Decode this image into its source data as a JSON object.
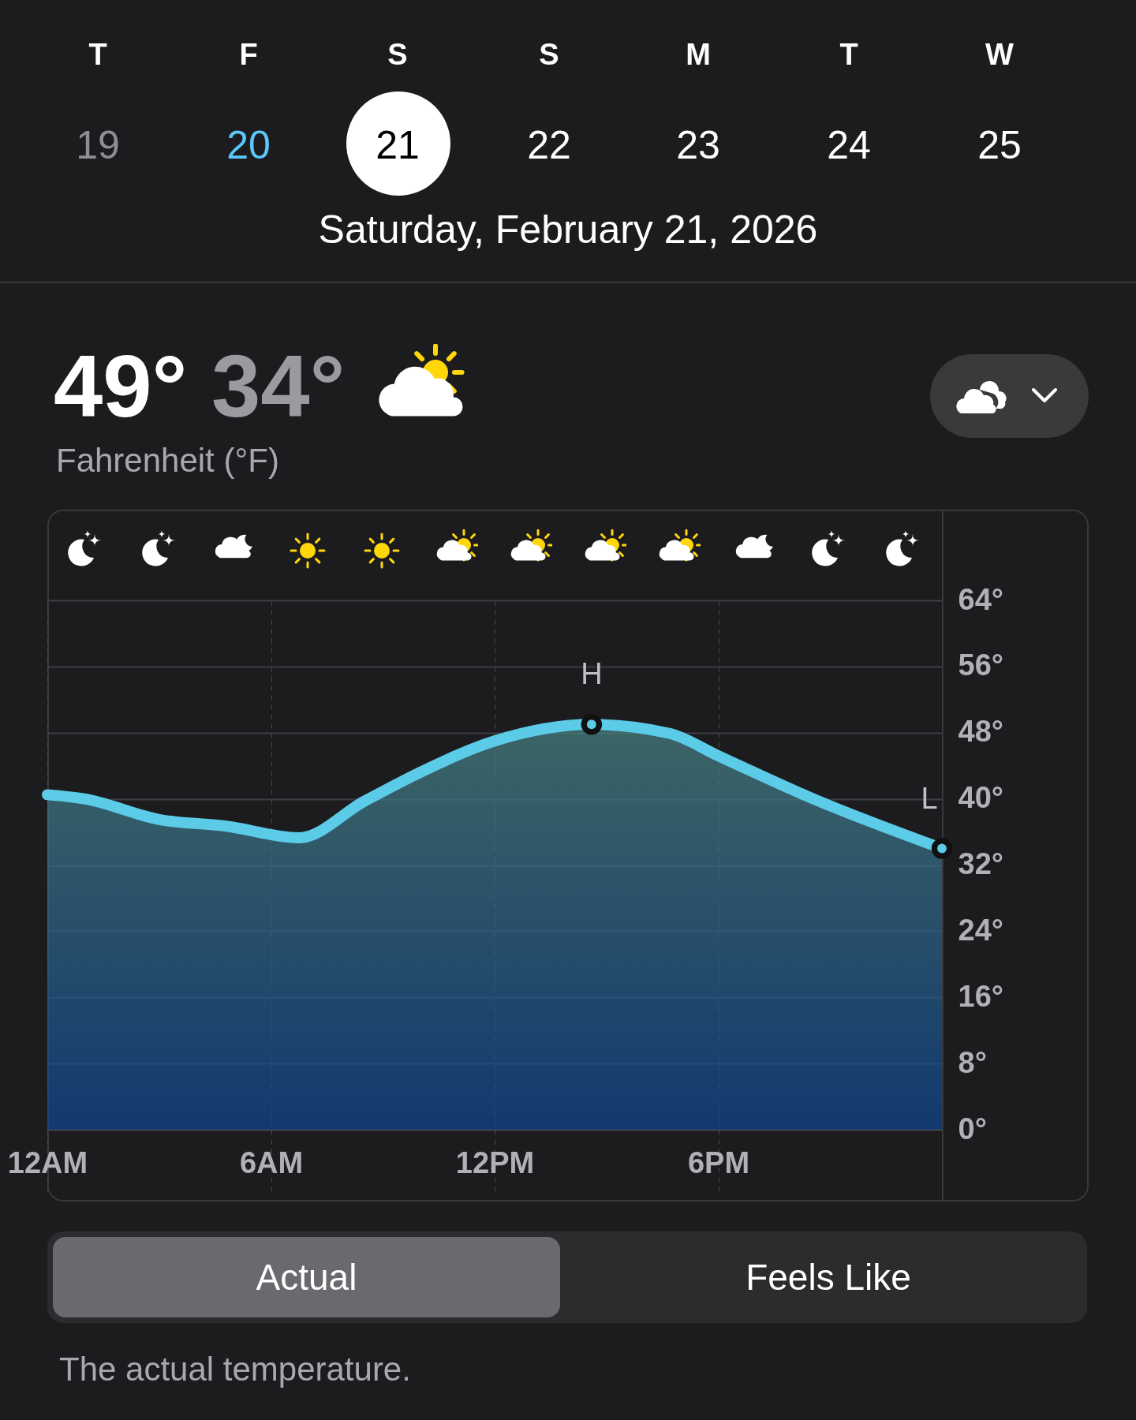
{
  "chart_data": {
    "type": "area",
    "title": "Saturday, February 21, 2026",
    "x": [
      "2026-02-21T00:00",
      "2026-02-21T01:00",
      "2026-02-21T03:00",
      "2026-02-21T04:48",
      "2026-02-21T06:45",
      "2026-02-21T08:30",
      "2026-02-21T10:00",
      "2026-02-21T12:00",
      "2026-02-21T14:36",
      "2026-02-21T16:42",
      "2026-02-21T18:00",
      "2026-02-21T20:36",
      "2026-02-22T00:00"
    ],
    "series": [
      {
        "color": "#5ccbe8",
        "values": [
          40.5,
          40,
          37.5,
          36.7,
          35.3,
          39.7,
          43.2,
          47,
          49,
          47.9,
          45.2,
          39.9,
          34
        ]
      }
    ],
    "xlim": [
      "2026-02-21T00:00",
      "2026-02-22T00:00"
    ],
    "xticks": [
      {
        "value": "2026-02-21T00:00",
        "label": "12AM"
      },
      {
        "value": "2026-02-21T06:00",
        "label": "6AM"
      },
      {
        "value": "2026-02-21T12:00",
        "label": "12PM"
      },
      {
        "value": "2026-02-21T18:00",
        "label": "6PM"
      }
    ],
    "ylim": [
      0,
      64
    ],
    "yticks": [
      {
        "value": 0,
        "label": "0°"
      },
      {
        "value": 8,
        "label": "8°"
      },
      {
        "value": 16,
        "label": "16°"
      },
      {
        "value": 24,
        "label": "24°"
      },
      {
        "value": 32,
        "label": "32°"
      },
      {
        "value": 40,
        "label": "40°"
      },
      {
        "value": 48,
        "label": "48°"
      },
      {
        "value": 56,
        "label": "56°"
      },
      {
        "value": 64,
        "label": "64°"
      }
    ],
    "grid": true,
    "annotations": [
      "T",
      "F",
      "S",
      "S",
      "M",
      "T",
      "W",
      "19",
      "20",
      "21",
      "22",
      "23",
      "24",
      "25",
      "49°",
      "34°",
      "Fahrenheit (°F)",
      "Actual",
      "Feels Like",
      "The actual temperature.",
      {
        "text": "H",
        "x": "2026-02-21T14:36",
        "y": 49
      },
      {
        "text": "L",
        "x": "2026-02-22T00:00",
        "y": 34
      }
    ]
  }
}
